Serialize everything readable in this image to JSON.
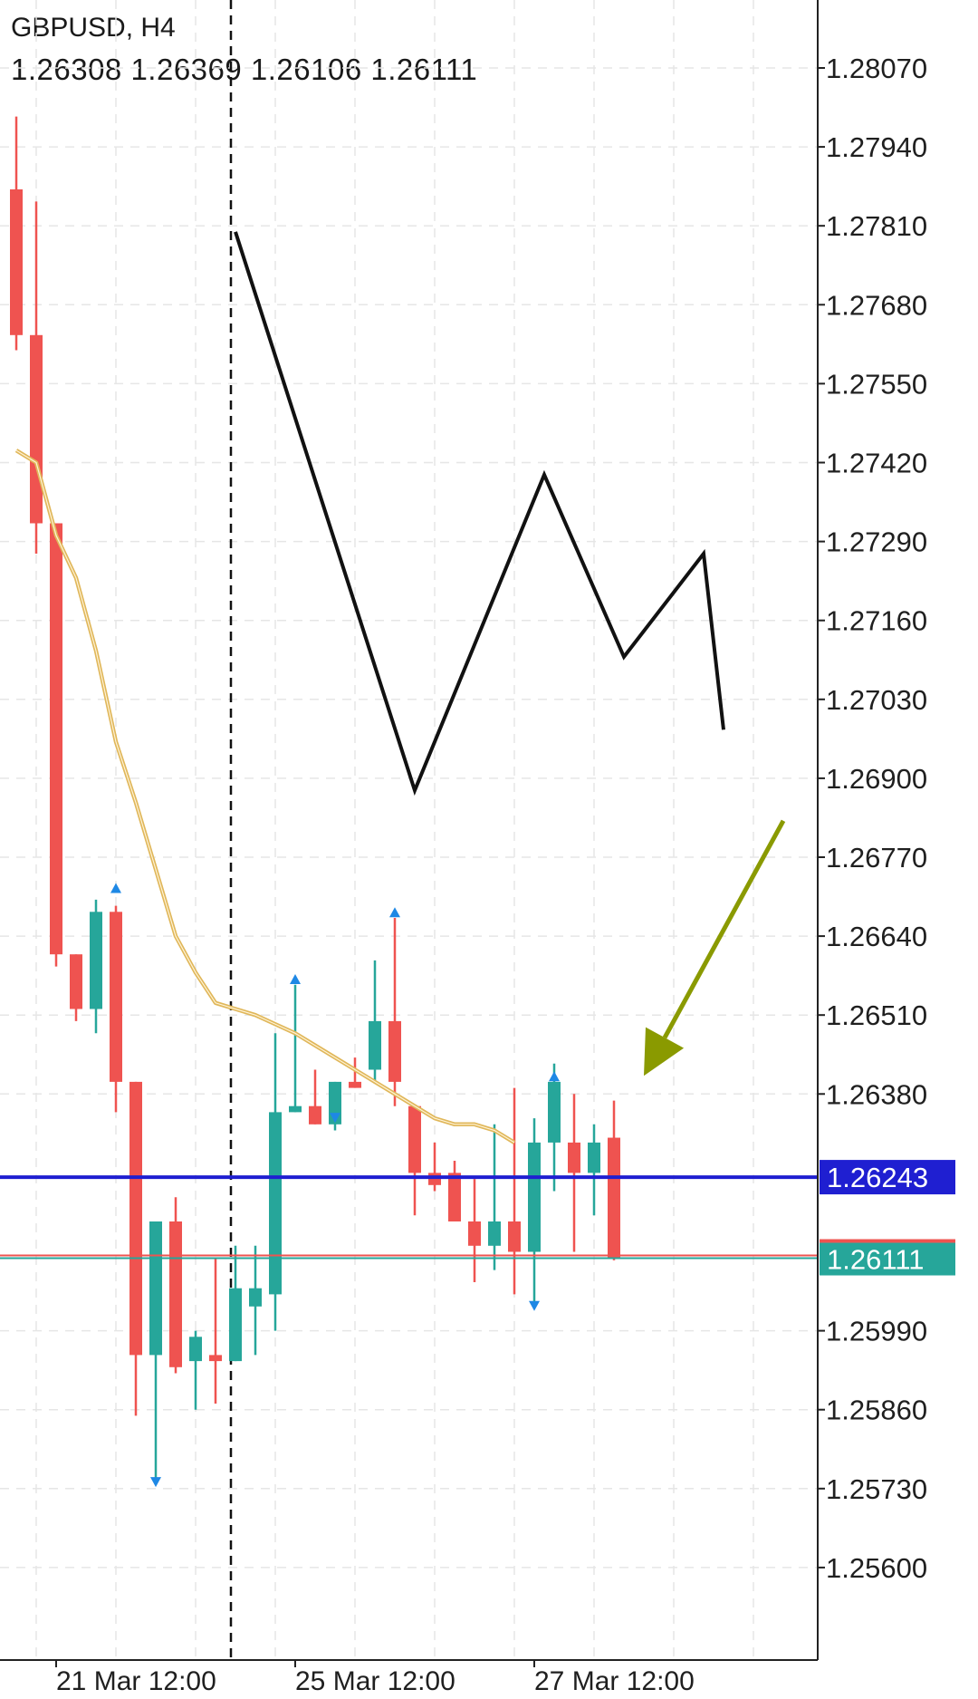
{
  "header": {
    "symbol_timeframe": "GBPUSD, H4",
    "ohlc": "1.26308 1.26369 1.26106 1.26111"
  },
  "colors": {
    "bull": "#26a69a",
    "bear": "#ef5350",
    "ma": "#e0b75a",
    "support_line": "#1f1fd1",
    "bid_line": "#26a69a",
    "ask_line": "#ef5350",
    "arrow": "#8a9a00",
    "zigzag": "#111111",
    "fractal": "#1e88e5"
  },
  "chart_data": {
    "type": "candlestick",
    "y_ticks": [
      "1.28070",
      "1.27940",
      "1.27810",
      "1.27680",
      "1.27550",
      "1.27420",
      "1.27290",
      "1.27160",
      "1.27030",
      "1.26900",
      "1.26770",
      "1.26640",
      "1.26510",
      "1.26380",
      "1.26243",
      "1.26111",
      "1.25990",
      "1.25860",
      "1.25730",
      "1.25600"
    ],
    "y_tick_values": [
      1.2807,
      1.2794,
      1.2781,
      1.2768,
      1.2755,
      1.2742,
      1.2729,
      1.2716,
      1.2703,
      1.269,
      1.2677,
      1.2664,
      1.2651,
      1.2638,
      1.2599,
      1.2586,
      1.2573,
      1.256
    ],
    "ylim": [
      1.2548,
      1.2816
    ],
    "x_labels": [
      {
        "text": "21 Mar 12:00",
        "index": 1
      },
      {
        "text": "25 Mar 12:00",
        "index": 13
      },
      {
        "text": "27 Mar 12:00",
        "index": 25
      }
    ],
    "candles": [
      {
        "o": 1.2787,
        "h": 1.2799,
        "l": 1.27605,
        "c": 1.2763
      },
      {
        "o": 1.2763,
        "h": 1.2785,
        "l": 1.2727,
        "c": 1.2732
      },
      {
        "o": 1.2732,
        "h": 1.2732,
        "l": 1.2659,
        "c": 1.2661
      },
      {
        "o": 1.2661,
        "h": 1.2661,
        "l": 1.265,
        "c": 1.2652
      },
      {
        "o": 1.2652,
        "h": 1.267,
        "l": 1.2648,
        "c": 1.2668
      },
      {
        "o": 1.2668,
        "h": 1.2669,
        "l": 1.2635,
        "c": 1.264
      },
      {
        "o": 1.264,
        "h": 1.264,
        "l": 1.2585,
        "c": 1.2595
      },
      {
        "o": 1.2595,
        "h": 1.2617,
        "l": 1.2574,
        "c": 1.2617
      },
      {
        "o": 1.2617,
        "h": 1.2621,
        "l": 1.2592,
        "c": 1.2593
      },
      {
        "o": 1.2594,
        "h": 1.2599,
        "l": 1.2586,
        "c": 1.2598
      },
      {
        "o": 1.2595,
        "h": 1.2611,
        "l": 1.2587,
        "c": 1.2594
      },
      {
        "o": 1.2594,
        "h": 1.2613,
        "l": 1.2594,
        "c": 1.2606
      },
      {
        "o": 1.2603,
        "h": 1.2613,
        "l": 1.2595,
        "c": 1.2606
      },
      {
        "o": 1.2605,
        "h": 1.2648,
        "l": 1.2599,
        "c": 1.2635
      },
      {
        "o": 1.2635,
        "h": 1.2656,
        "l": 1.2635,
        "c": 1.2636
      },
      {
        "o": 1.2636,
        "h": 1.2642,
        "l": 1.2633,
        "c": 1.2633
      },
      {
        "o": 1.2633,
        "h": 1.264,
        "l": 1.2632,
        "c": 1.264
      },
      {
        "o": 1.264,
        "h": 1.2644,
        "l": 1.2639,
        "c": 1.2639
      },
      {
        "o": 1.2642,
        "h": 1.266,
        "l": 1.264,
        "c": 1.265
      },
      {
        "o": 1.265,
        "h": 1.2667,
        "l": 1.2636,
        "c": 1.264
      },
      {
        "o": 1.2636,
        "h": 1.2636,
        "l": 1.2618,
        "c": 1.2625
      },
      {
        "o": 1.2625,
        "h": 1.263,
        "l": 1.2622,
        "c": 1.2623
      },
      {
        "o": 1.2625,
        "h": 1.2627,
        "l": 1.2618,
        "c": 1.2617
      },
      {
        "o": 1.2617,
        "h": 1.2624,
        "l": 1.2607,
        "c": 1.2613
      },
      {
        "o": 1.2613,
        "h": 1.2633,
        "l": 1.2609,
        "c": 1.2617
      },
      {
        "o": 1.2617,
        "h": 1.2639,
        "l": 1.2605,
        "c": 1.2612
      },
      {
        "o": 1.2612,
        "h": 1.2634,
        "l": 1.2603,
        "c": 1.263
      },
      {
        "o": 1.263,
        "h": 1.2643,
        "l": 1.2622,
        "c": 1.264
      },
      {
        "o": 1.263,
        "h": 1.2638,
        "l": 1.2612,
        "c": 1.2625
      },
      {
        "o": 1.2625,
        "h": 1.2633,
        "l": 1.2618,
        "c": 1.263
      },
      {
        "o": 1.26308,
        "h": 1.26369,
        "l": 1.26106,
        "c": 1.26111
      }
    ],
    "moving_average": [
      1.2744,
      1.2742,
      1.273,
      1.2723,
      1.2711,
      1.2696,
      1.2686,
      1.2675,
      1.2664,
      1.2658,
      1.2653,
      1.2652,
      1.2651,
      1.26495,
      1.2648,
      1.2646,
      1.2644,
      1.2642,
      1.264,
      1.2638,
      1.2636,
      1.2634,
      1.2633,
      1.2633,
      1.2632,
      1.263
    ],
    "zigzag": [
      [
        11,
        1.278
      ],
      [
        20,
        1.2688
      ],
      [
        26.5,
        1.274
      ],
      [
        30.5,
        1.271
      ],
      [
        34.5,
        1.2727
      ],
      [
        35.5,
        1.2698
      ]
    ],
    "fractals_up": [
      [
        5,
        1.2672
      ],
      [
        14,
        1.2657
      ],
      [
        19,
        1.2668
      ],
      [
        27,
        1.2641
      ]
    ],
    "fractals_down": [
      [
        7,
        1.2574
      ],
      [
        16,
        1.2634
      ],
      [
        26,
        1.2603
      ]
    ],
    "vline_index": 10,
    "support_level": 1.26243,
    "bid": 1.26111,
    "arrow_from": [
      38.5,
      1.2683
    ],
    "arrow_to": [
      31.5,
      1.2641
    ],
    "grid": true
  }
}
